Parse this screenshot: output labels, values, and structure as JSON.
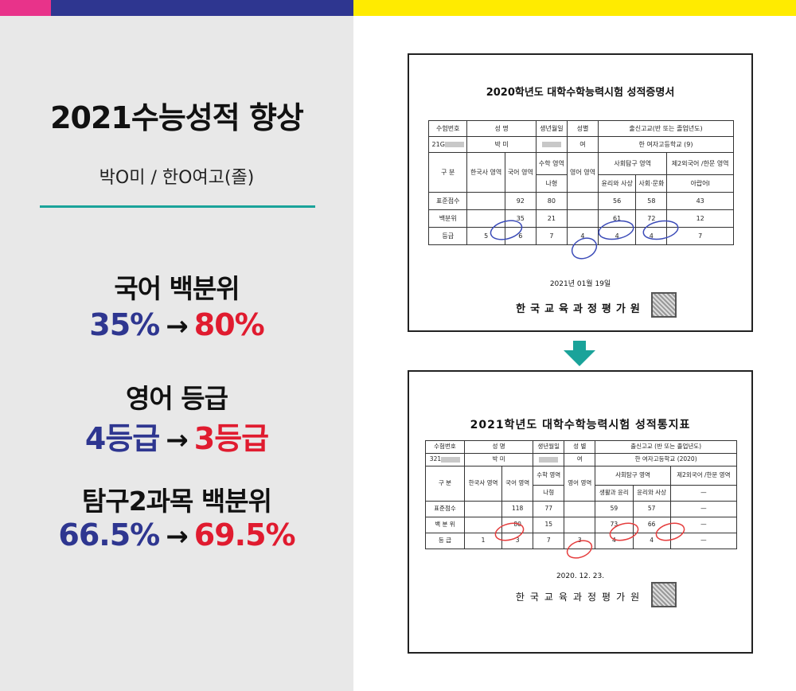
{
  "colors": {
    "pink": "#e8338a",
    "navy": "#2e3690",
    "yellow": "#ffeb00",
    "teal": "#1aa39a",
    "red": "#e01b2f",
    "circle_blue": "#3b4bb8",
    "circle_red": "#e53d3d"
  },
  "left": {
    "title": "2021수능성적 향상",
    "subtitle": "박O미 / 한O여고(졸)",
    "stats": [
      {
        "label": "국어 백분위",
        "from": "35%",
        "arrow": "→",
        "to": "80%"
      },
      {
        "label": "영어 등급",
        "from": "4등급",
        "arrow": "→",
        "to": "3등급"
      },
      {
        "label": "탐구2과목 백분위",
        "from": "66.5%",
        "arrow": "→",
        "to": "69.5%"
      }
    ]
  },
  "doc1": {
    "title": "2020학년도 대학수학능력시험 성적증명서",
    "headers": {
      "exam_no": "수험번호",
      "name": "성 명",
      "birth": "생년월일",
      "sex": "성별",
      "school": "출신고교(반 또는 졸업년도)"
    },
    "student": {
      "exam_no": "21G",
      "name": "박 미",
      "sex": "여",
      "school": "한 여자고등학교 (9)"
    },
    "cols": {
      "gubun": "구 분",
      "korhist": "한국사 영역",
      "korean": "국어 영역",
      "math": "수학 영역",
      "math_type": "나형",
      "english": "영어 영역",
      "social": "사회탐구 영역",
      "sub1": "윤리와 사상",
      "sub2": "사회·문화",
      "foreign": "제2외국어 /한문 영역",
      "foreign_sub": "아랍어Ⅰ"
    },
    "rows": [
      {
        "label": "표준점수",
        "korhist": "",
        "korean": "92",
        "math": "80",
        "english": "",
        "s1": "56",
        "s2": "58",
        "f": "43"
      },
      {
        "label": "백분위",
        "korhist": "",
        "korean": "35",
        "math": "21",
        "english": "",
        "s1": "61",
        "s2": "72",
        "f": "12"
      },
      {
        "label": "등급",
        "korhist": "5",
        "korean": "6",
        "math": "7",
        "english": "4",
        "s1": "4",
        "s2": "4",
        "f": "7"
      }
    ],
    "date": "2021년 01월 19일",
    "issuer": "한국교육과정평가원",
    "seal": "장"
  },
  "doc2": {
    "title": "2021학년도 대학수학능력시험 성적통지표",
    "headers": {
      "exam_no": "수험번호",
      "name": "성 명",
      "birth": "생년월일",
      "sex": "성 별",
      "school": "출신고교 (반 또는 졸업년도)"
    },
    "student": {
      "exam_no": "321",
      "name": "박 미",
      "sex": "여",
      "school": "한 여자고등학교 (2020)"
    },
    "cols": {
      "gubun": "구 분",
      "korhist": "한국사 영역",
      "korean": "국어 영역",
      "math": "수학 영역",
      "math_type": "나형",
      "english": "영어 영역",
      "social": "사회탐구 영역",
      "sub1": "생활과 윤리",
      "sub2": "윤리와 사상",
      "foreign": "제2외국어 /한문 영역",
      "foreign_sub": "—"
    },
    "rows": [
      {
        "label": "표준점수",
        "korhist": "",
        "korean": "118",
        "math": "77",
        "english": "",
        "s1": "59",
        "s2": "57",
        "f": "—"
      },
      {
        "label": "백 분 위",
        "korhist": "",
        "korean": "80",
        "math": "15",
        "english": "",
        "s1": "73",
        "s2": "66",
        "f": "—"
      },
      {
        "label": "등 급",
        "korhist": "1",
        "korean": "3",
        "math": "7",
        "english": "3",
        "s1": "4",
        "s2": "4",
        "f": "—"
      }
    ],
    "date": "2020. 12. 23.",
    "issuer": "한국교육과정평가원",
    "seal": "장"
  }
}
